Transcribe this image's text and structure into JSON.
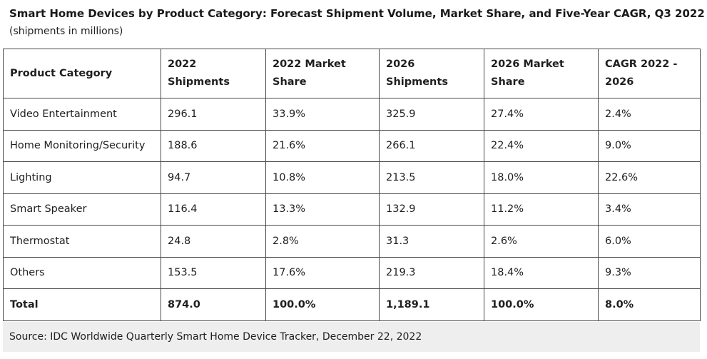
{
  "title": "Smart Home Devices by Product Category: Forecast Shipment Volume, Market Share, and Five-Year CAGR, Q3 2022",
  "subtitle": "(shipments in millions)",
  "table": {
    "headers": [
      "Product Category",
      "2022 Shipments",
      "2022 Market Share",
      "2026 Shipments",
      "2026 Market Share",
      "CAGR 2022 - 2026"
    ],
    "rows": [
      [
        "Video Entertainment",
        "296.1",
        "33.9%",
        "325.9",
        "27.4%",
        "2.4%"
      ],
      [
        "Home Monitoring/Security",
        "188.6",
        "21.6%",
        "266.1",
        "22.4%",
        "9.0%"
      ],
      [
        "Lighting",
        "94.7",
        "10.8%",
        "213.5",
        "18.0%",
        "22.6%"
      ],
      [
        "Smart Speaker",
        "116.4",
        "13.3%",
        "132.9",
        "11.2%",
        "3.4%"
      ],
      [
        "Thermostat",
        "24.8",
        "2.8%",
        "31.3",
        "2.6%",
        "6.0%"
      ],
      [
        "Others",
        "153.5",
        "17.6%",
        "219.3",
        "18.4%",
        "9.3%"
      ]
    ],
    "total": [
      "Total",
      "874.0",
      "100.0%",
      "1,189.1",
      "100.0%",
      "8.0%"
    ]
  },
  "source": "Source: IDC Worldwide Quarterly Smart Home Device Tracker, December 22, 2022"
}
